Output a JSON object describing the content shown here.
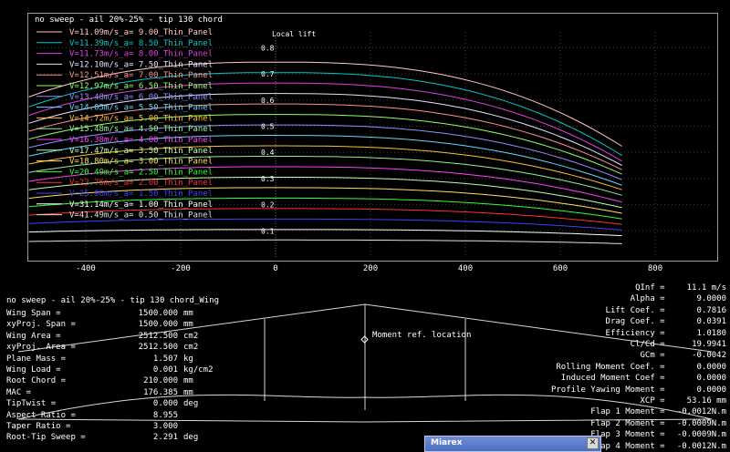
{
  "graph": {
    "title": "no sweep - ail 20%-25% - tip 130 chord",
    "y_axis_label": "Local lift",
    "legend": [
      {
        "label": "V=11.09m/s_a= 9.00_Thin_Panel",
        "color": "#ffc8c8"
      },
      {
        "label": "V=11.39m/s_a= 8.50_Thin_Panel",
        "color": "#00c8c8"
      },
      {
        "label": "V=11.73m/s_a= 8.00_Thin_Panel",
        "color": "#e040e0"
      },
      {
        "label": "V=12.10m/s_a= 7.50_Thin_Panel",
        "color": "#e8e0ff"
      },
      {
        "label": "V=12.51m/s_a= 7.00_Thin_Panel",
        "color": "#ff9090"
      },
      {
        "label": "V=12.97m/s_a= 6.50_Thin_Panel",
        "color": "#90ff60"
      },
      {
        "label": "V=13.48m/s_a= 6.00_Thin_Panel",
        "color": "#9090ff"
      },
      {
        "label": "V=14.05m/s_a= 5.50_Thin_Panel",
        "color": "#60d8ff"
      },
      {
        "label": "V=14.72m/s_a= 5.00_Thin_Panel",
        "color": "#ffc030"
      },
      {
        "label": "V=15.48m/s_a= 4.50_Thin_Panel",
        "color": "#90f0a0"
      },
      {
        "label": "V=16.38m/s_a= 4.00_Thin_Panel",
        "color": "#ff40ff"
      },
      {
        "label": "V=17.47m/s_a= 3.50_Thin_Panel",
        "color": "#c0ffb0"
      },
      {
        "label": "V=18.80m/s_a= 3.00_Thin_Panel",
        "color": "#ffe060"
      },
      {
        "label": "V=20.49m/s_a= 2.50_Thin_Panel",
        "color": "#30ff30"
      },
      {
        "label": "V=22.75m/s_a= 2.00_Thin_Panel",
        "color": "#ff3030"
      },
      {
        "label": "V=25.98m/s_a= 1.50_Thin_Panel",
        "color": "#4040ff"
      },
      {
        "label": "V=31.14m/s_a= 1.00_Thin_Panel",
        "color": "#ffffff"
      },
      {
        "label": "V=41.49m/s_a= 0.50_Thin_Panel",
        "color": "#e0e0e0"
      }
    ],
    "root_cl": [
      0.745,
      0.705,
      0.665,
      0.625,
      0.585,
      0.545,
      0.505,
      0.465,
      0.425,
      0.385,
      0.345,
      0.305,
      0.265,
      0.225,
      0.185,
      0.145,
      0.105,
      0.065
    ],
    "tip_cl": [
      0.4,
      0.365,
      0.345,
      0.33,
      0.315,
      0.3,
      0.28,
      0.26,
      0.245,
      0.225,
      0.2,
      0.18,
      0.16,
      0.14,
      0.12,
      0.1,
      0.08,
      0.05
    ],
    "x_ticks": [
      "-400",
      "-200",
      "0",
      "200",
      "400",
      "600",
      "800"
    ],
    "y_ticks": [
      "0.1",
      "0.2",
      "0.3",
      "0.4",
      "0.5",
      "0.6",
      "0.7",
      "0.8"
    ]
  },
  "wing_title": "no sweep - ail 20%-25% - tip 130 chord_Wing",
  "moment_ref_label": "Moment ref. location",
  "left_props": [
    {
      "label": "Wing Span =",
      "value": "1500.000",
      "unit": "mm"
    },
    {
      "label": "xyProj. Span =",
      "value": "1500.000",
      "unit": "mm"
    },
    {
      "label": "Wing Area =",
      "value": "2512.500",
      "unit": "cm2"
    },
    {
      "label": "xyProj. Area =",
      "value": "2512.500",
      "unit": "cm2"
    },
    {
      "label": "Plane Mass =",
      "value": "1.507",
      "unit": "kg"
    },
    {
      "label": "Wing Load =",
      "value": "0.001",
      "unit": "kg/cm2"
    },
    {
      "label": "Root Chord =",
      "value": "210.000",
      "unit": "mm"
    },
    {
      "label": "MAC =",
      "value": "176.385",
      "unit": "mm"
    },
    {
      "label": "TipTwist =",
      "value": "0.000",
      "unit": "deg"
    },
    {
      "label": "Aspect Ratio =",
      "value": "8.955",
      "unit": ""
    },
    {
      "label": "Taper Ratio =",
      "value": "3.000",
      "unit": ""
    },
    {
      "label": "Root-Tip Sweep =",
      "value": "2.291",
      "unit": "deg"
    }
  ],
  "right_props": [
    {
      "label": "QInf =",
      "value": "11.1 m/s"
    },
    {
      "label": "Alpha =",
      "value": "9.0000"
    },
    {
      "label": "Lift Coef. =",
      "value": "0.7816"
    },
    {
      "label": "Drag Coef. =",
      "value": "0.0391"
    },
    {
      "label": "Efficiency =",
      "value": "1.0180"
    },
    {
      "label": "Cl/Cd =",
      "value": "19.9941"
    },
    {
      "label": "GCm =",
      "value": "-0.0042"
    },
    {
      "label": "Rolling Moment Coef. =",
      "value": "0.0000"
    },
    {
      "label": "Induced Moment Coef =",
      "value": "0.0000"
    },
    {
      "label": "Profile Yawing Moment =",
      "value": "0.0000"
    },
    {
      "label": "XCP =",
      "value": "53.16 mm"
    },
    {
      "label": "Flap 1 Moment =",
      "value": "-0.0012N.m"
    },
    {
      "label": "Flap 2 Moment =",
      "value": "-0.0009N.m"
    },
    {
      "label": "Flap 3 Moment =",
      "value": "-0.0009N.m"
    },
    {
      "label": "Flap 4 Moment =",
      "value": "-0.0012N.m"
    }
  ],
  "miarex": {
    "title": "Miarex",
    "close_label": "✕"
  }
}
